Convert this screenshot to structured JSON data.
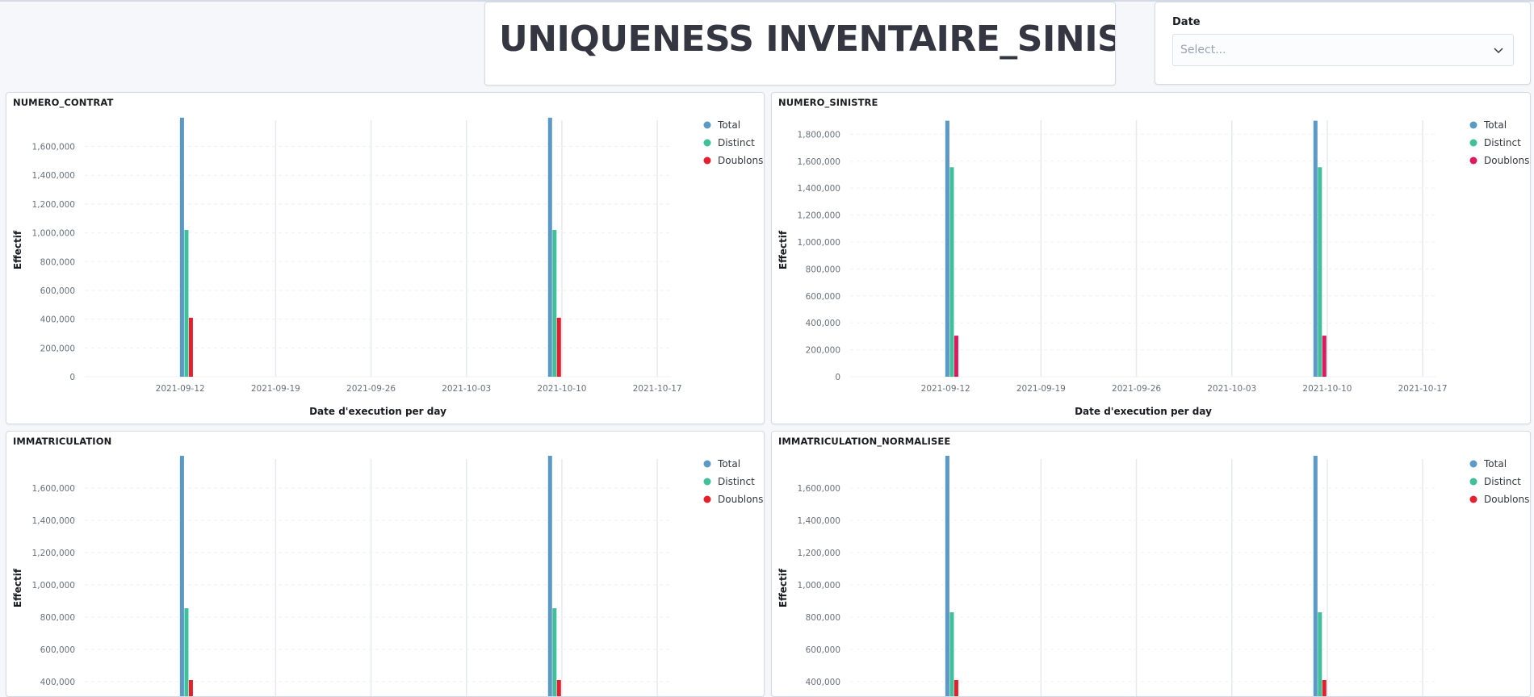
{
  "dashboard": {
    "title": "UNIQUENESS INVENTAIRE_SINISTRE"
  },
  "controls": {
    "date_label": "Date",
    "date_placeholder": "Select..."
  },
  "colors": {
    "total": "#5a9ac5",
    "distinct": "#3fbf9a",
    "doublons": "#e5202e",
    "doublons_alt": "#e0195c",
    "grid": "#e6e9ef",
    "axis_text": "#69707d"
  },
  "chart_data": [
    {
      "type": "bar",
      "title": "NUMERO_CONTRAT",
      "xlabel": "Date d'execution per day",
      "ylabel": "Effectif",
      "ylim": [
        0,
        1760000
      ],
      "yticks": [
        0,
        200000,
        400000,
        600000,
        800000,
        1000000,
        1200000,
        1400000,
        1600000
      ],
      "ytick_labels": [
        "0",
        "200,000",
        "400,000",
        "600,000",
        "800,000",
        "1,000,000",
        "1,200,000",
        "1,400,000",
        "1,600,000"
      ],
      "xticks": [
        "2021-09-12",
        "2021-09-19",
        "2021-09-26",
        "2021-10-03",
        "2021-10-10",
        "2021-10-17"
      ],
      "x": [
        "2021-09-12",
        "2021-10-09"
      ],
      "series": [
        {
          "name": "Total",
          "color": "#5a9ac5",
          "values": [
            1800000,
            1800000
          ]
        },
        {
          "name": "Distinct",
          "color": "#3fbf9a",
          "values": [
            1020000,
            1020000
          ]
        },
        {
          "name": "Doublons",
          "color": "#e5202e",
          "values": [
            410000,
            410000
          ]
        }
      ],
      "legend": "top-right",
      "grid": true
    },
    {
      "type": "bar",
      "title": "NUMERO_SINISTRE",
      "xlabel": "Date d'execution per day",
      "ylabel": "Effectif",
      "ylim": [
        0,
        1880000
      ],
      "yticks": [
        0,
        200000,
        400000,
        600000,
        800000,
        1000000,
        1200000,
        1400000,
        1600000,
        1800000
      ],
      "ytick_labels": [
        "0",
        "200,000",
        "400,000",
        "600,000",
        "800,000",
        "1,000,000",
        "1,200,000",
        "1,400,000",
        "1,600,000",
        "1,800,000"
      ],
      "xticks": [
        "2021-09-12",
        "2021-09-19",
        "2021-09-26",
        "2021-10-03",
        "2021-10-10",
        "2021-10-17"
      ],
      "x": [
        "2021-09-12",
        "2021-10-09"
      ],
      "series": [
        {
          "name": "Total",
          "color": "#5a9ac5",
          "values": [
            1900000,
            1900000
          ]
        },
        {
          "name": "Distinct",
          "color": "#3fbf9a",
          "values": [
            1555000,
            1555000
          ]
        },
        {
          "name": "Doublons",
          "color": "#e0195c",
          "values": [
            305000,
            305000
          ]
        }
      ],
      "legend": "top-right",
      "grid": true
    },
    {
      "type": "bar",
      "title": "IMMATRICULATION",
      "xlabel": "",
      "ylabel": "Effectif",
      "ylim": [
        0,
        1760000
      ],
      "yticks": [
        200000,
        400000,
        600000,
        800000,
        1000000,
        1200000,
        1400000,
        1600000
      ],
      "ytick_labels": [
        "200,000",
        "400,000",
        "600,000",
        "800,000",
        "1,000,000",
        "1,200,000",
        "1,400,000",
        "1,600,000"
      ],
      "xticks": [],
      "x": [
        "2021-09-12",
        "2021-10-09"
      ],
      "series": [
        {
          "name": "Total",
          "color": "#5a9ac5",
          "values": [
            1800000,
            1800000
          ]
        },
        {
          "name": "Distinct",
          "color": "#3fbf9a",
          "values": [
            855000,
            855000
          ]
        },
        {
          "name": "Doublons",
          "color": "#e5202e",
          "values": [
            410000,
            410000
          ]
        }
      ],
      "legend": "top-right",
      "grid": true
    },
    {
      "type": "bar",
      "title": "IMMATRICULATION_NORMALISEE",
      "xlabel": "",
      "ylabel": "Effectif",
      "ylim": [
        0,
        1760000
      ],
      "yticks": [
        200000,
        400000,
        600000,
        800000,
        1000000,
        1200000,
        1400000,
        1600000
      ],
      "ytick_labels": [
        "200,000",
        "400,000",
        "600,000",
        "800,000",
        "1,000,000",
        "1,200,000",
        "1,400,000",
        "1,600,000"
      ],
      "xticks": [],
      "x": [
        "2021-09-12",
        "2021-10-09"
      ],
      "series": [
        {
          "name": "Total",
          "color": "#5a9ac5",
          "values": [
            1800000,
            1800000
          ]
        },
        {
          "name": "Distinct",
          "color": "#3fbf9a",
          "values": [
            830000,
            830000
          ]
        },
        {
          "name": "Doublons",
          "color": "#e5202e",
          "values": [
            410000,
            410000
          ]
        }
      ],
      "legend": "top-right",
      "grid": true
    }
  ]
}
